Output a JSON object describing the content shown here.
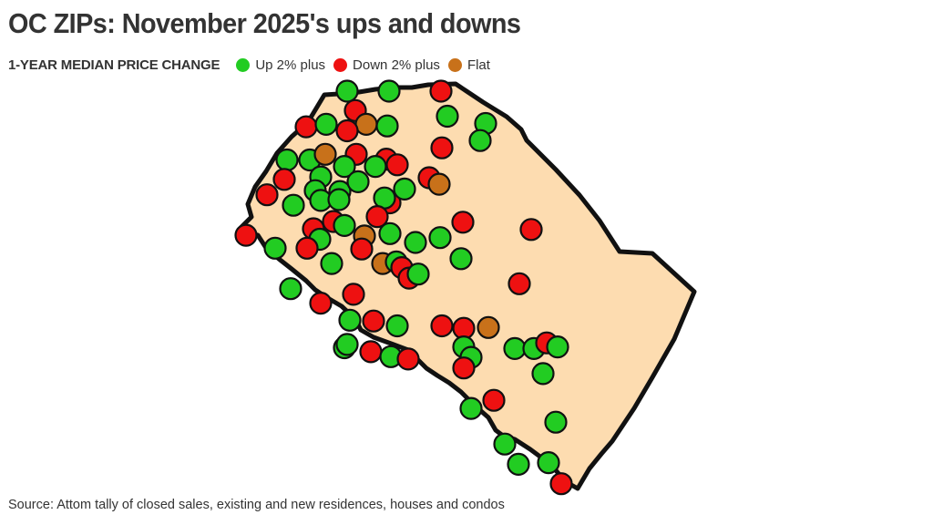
{
  "title": "OC ZIPs: November 2025's ups and downs",
  "legend": {
    "title": "1-YEAR MEDIAN PRICE CHANGE",
    "items": [
      {
        "label": "Up 2% plus",
        "color": "#22cc22"
      },
      {
        "label": "Down 2% plus",
        "color": "#ee1111"
      },
      {
        "label": "Flat",
        "color": "#c8711a"
      }
    ]
  },
  "source": "Source: Attom tally of closed sales, existing and new residences, houses and condos",
  "colors": {
    "region_fill": "#fddcb0",
    "region_stroke": "#111111",
    "up": "#22cc22",
    "down": "#ee1111",
    "flat": "#c8711a"
  },
  "zip_points": [
    {
      "lon": 0.238,
      "lat": 0.982,
      "status": "up"
    },
    {
      "lon": 0.33,
      "lat": 0.982,
      "status": "up"
    },
    {
      "lon": 0.444,
      "lat": 0.982,
      "status": "down"
    },
    {
      "lon": 0.256,
      "lat": 0.934,
      "status": "down"
    },
    {
      "lon": 0.458,
      "lat": 0.92,
      "status": "up"
    },
    {
      "lon": 0.28,
      "lat": 0.9,
      "status": "flat"
    },
    {
      "lon": 0.148,
      "lat": 0.894,
      "status": "down"
    },
    {
      "lon": 0.192,
      "lat": 0.9,
      "status": "up"
    },
    {
      "lon": 0.238,
      "lat": 0.884,
      "status": "down"
    },
    {
      "lon": 0.326,
      "lat": 0.896,
      "status": "up"
    },
    {
      "lon": 0.542,
      "lat": 0.902,
      "status": "up"
    },
    {
      "lon": 0.53,
      "lat": 0.86,
      "status": "up"
    },
    {
      "lon": 0.106,
      "lat": 0.812,
      "status": "up"
    },
    {
      "lon": 0.156,
      "lat": 0.812,
      "status": "up"
    },
    {
      "lon": 0.19,
      "lat": 0.826,
      "status": "flat"
    },
    {
      "lon": 0.258,
      "lat": 0.826,
      "status": "down"
    },
    {
      "lon": 0.324,
      "lat": 0.814,
      "status": "down"
    },
    {
      "lon": 0.446,
      "lat": 0.842,
      "status": "down"
    },
    {
      "lon": 0.1,
      "lat": 0.764,
      "status": "down"
    },
    {
      "lon": 0.18,
      "lat": 0.77,
      "status": "up"
    },
    {
      "lon": 0.232,
      "lat": 0.796,
      "status": "up"
    },
    {
      "lon": 0.3,
      "lat": 0.796,
      "status": "up"
    },
    {
      "lon": 0.348,
      "lat": 0.8,
      "status": "down"
    },
    {
      "lon": 0.418,
      "lat": 0.768,
      "status": "down"
    },
    {
      "lon": 0.44,
      "lat": 0.752,
      "status": "flat"
    },
    {
      "lon": 0.062,
      "lat": 0.726,
      "status": "down"
    },
    {
      "lon": 0.12,
      "lat": 0.7,
      "status": "up"
    },
    {
      "lon": 0.168,
      "lat": 0.736,
      "status": "up"
    },
    {
      "lon": 0.18,
      "lat": 0.712,
      "status": "up"
    },
    {
      "lon": 0.222,
      "lat": 0.734,
      "status": "up"
    },
    {
      "lon": 0.262,
      "lat": 0.758,
      "status": "up"
    },
    {
      "lon": 0.332,
      "lat": 0.706,
      "status": "down"
    },
    {
      "lon": 0.364,
      "lat": 0.74,
      "status": "up"
    },
    {
      "lon": 0.22,
      "lat": 0.714,
      "status": "up"
    },
    {
      "lon": 0.32,
      "lat": 0.718,
      "status": "up"
    },
    {
      "lon": 0.164,
      "lat": 0.642,
      "status": "down"
    },
    {
      "lon": 0.178,
      "lat": 0.616,
      "status": "up"
    },
    {
      "lon": 0.208,
      "lat": 0.66,
      "status": "down"
    },
    {
      "lon": 0.232,
      "lat": 0.65,
      "status": "up"
    },
    {
      "lon": 0.276,
      "lat": 0.624,
      "status": "flat"
    },
    {
      "lon": 0.304,
      "lat": 0.672,
      "status": "down"
    },
    {
      "lon": 0.332,
      "lat": 0.63,
      "status": "up"
    },
    {
      "lon": 0.492,
      "lat": 0.658,
      "status": "down"
    },
    {
      "lon": 0.642,
      "lat": 0.64,
      "status": "down"
    },
    {
      "lon": 0.016,
      "lat": 0.626,
      "status": "down"
    },
    {
      "lon": 0.08,
      "lat": 0.594,
      "status": "up"
    },
    {
      "lon": 0.15,
      "lat": 0.594,
      "status": "down"
    },
    {
      "lon": 0.204,
      "lat": 0.556,
      "status": "up"
    },
    {
      "lon": 0.27,
      "lat": 0.592,
      "status": "down"
    },
    {
      "lon": 0.316,
      "lat": 0.556,
      "status": "flat"
    },
    {
      "lon": 0.346,
      "lat": 0.56,
      "status": "up"
    },
    {
      "lon": 0.388,
      "lat": 0.608,
      "status": "up"
    },
    {
      "lon": 0.442,
      "lat": 0.62,
      "status": "up"
    },
    {
      "lon": 0.488,
      "lat": 0.568,
      "status": "up"
    },
    {
      "lon": 0.358,
      "lat": 0.546,
      "status": "down"
    },
    {
      "lon": 0.374,
      "lat": 0.52,
      "status": "down"
    },
    {
      "lon": 0.394,
      "lat": 0.53,
      "status": "up"
    },
    {
      "lon": 0.114,
      "lat": 0.494,
      "status": "up"
    },
    {
      "lon": 0.18,
      "lat": 0.458,
      "status": "down"
    },
    {
      "lon": 0.252,
      "lat": 0.48,
      "status": "down"
    },
    {
      "lon": 0.616,
      "lat": 0.506,
      "status": "down"
    },
    {
      "lon": 0.244,
      "lat": 0.416,
      "status": "up"
    },
    {
      "lon": 0.296,
      "lat": 0.414,
      "status": "down"
    },
    {
      "lon": 0.348,
      "lat": 0.402,
      "status": "up"
    },
    {
      "lon": 0.446,
      "lat": 0.402,
      "status": "down"
    },
    {
      "lon": 0.494,
      "lat": 0.396,
      "status": "down"
    },
    {
      "lon": 0.548,
      "lat": 0.398,
      "status": "flat"
    },
    {
      "lon": 0.232,
      "lat": 0.348,
      "status": "up"
    },
    {
      "lon": 0.238,
      "lat": 0.356,
      "status": "up"
    },
    {
      "lon": 0.29,
      "lat": 0.338,
      "status": "down"
    },
    {
      "lon": 0.334,
      "lat": 0.326,
      "status": "up"
    },
    {
      "lon": 0.372,
      "lat": 0.32,
      "status": "down"
    },
    {
      "lon": 0.494,
      "lat": 0.35,
      "status": "up"
    },
    {
      "lon": 0.606,
      "lat": 0.346,
      "status": "up"
    },
    {
      "lon": 0.648,
      "lat": 0.346,
      "status": "up"
    },
    {
      "lon": 0.676,
      "lat": 0.36,
      "status": "down"
    },
    {
      "lon": 0.7,
      "lat": 0.35,
      "status": "up"
    },
    {
      "lon": 0.51,
      "lat": 0.324,
      "status": "up"
    },
    {
      "lon": 0.494,
      "lat": 0.298,
      "status": "down"
    },
    {
      "lon": 0.668,
      "lat": 0.284,
      "status": "up"
    },
    {
      "lon": 0.56,
      "lat": 0.218,
      "status": "down"
    },
    {
      "lon": 0.51,
      "lat": 0.198,
      "status": "up"
    },
    {
      "lon": 0.696,
      "lat": 0.164,
      "status": "up"
    },
    {
      "lon": 0.584,
      "lat": 0.11,
      "status": "up"
    },
    {
      "lon": 0.614,
      "lat": 0.06,
      "status": "up"
    },
    {
      "lon": 0.68,
      "lat": 0.064,
      "status": "up"
    },
    {
      "lon": 0.708,
      "lat": 0.012,
      "status": "down"
    }
  ]
}
